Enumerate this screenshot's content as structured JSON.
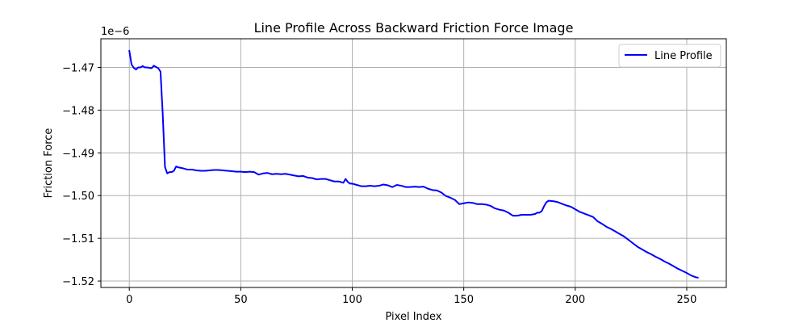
{
  "chart_data": {
    "type": "line",
    "title": "Line Profile Across Backward Friction Force Image",
    "xlabel": "Pixel Index",
    "ylabel": "Friction Force",
    "offset_text": "1e−6",
    "xlim": [
      -12.75,
      267.75
    ],
    "ylim": [
      -1.5215,
      -1.4633
    ],
    "x_ticks": [
      0,
      50,
      100,
      150,
      200,
      250
    ],
    "y_ticks": [
      -1.47,
      -1.48,
      -1.49,
      -1.5,
      -1.51,
      -1.52
    ],
    "y_tick_labels": [
      "−1.47",
      "−1.48",
      "−1.49",
      "−1.50",
      "−1.51",
      "−1.52"
    ],
    "grid": true,
    "legend": {
      "placement": "top-right"
    },
    "series": [
      {
        "name": "Line Profile",
        "color": "#0000ff",
        "points": [
          [
            0,
            -1.4661
          ],
          [
            1,
            -1.4693
          ],
          [
            2,
            -1.4701
          ],
          [
            3,
            -1.4705
          ],
          [
            4,
            -1.47
          ],
          [
            5,
            -1.47
          ],
          [
            6,
            -1.4697
          ],
          [
            7,
            -1.47
          ],
          [
            8,
            -1.47
          ],
          [
            9,
            -1.4701
          ],
          [
            10,
            -1.4702
          ],
          [
            11,
            -1.4696
          ],
          [
            12,
            -1.4699
          ],
          [
            13,
            -1.4702
          ],
          [
            14,
            -1.471
          ],
          [
            15,
            -1.481
          ],
          [
            16,
            -1.4933
          ],
          [
            17,
            -1.4948
          ],
          [
            18,
            -1.4945
          ],
          [
            19,
            -1.4945
          ],
          [
            20,
            -1.4942
          ],
          [
            21,
            -1.4932
          ],
          [
            22,
            -1.4934
          ],
          [
            24,
            -1.4936
          ],
          [
            26,
            -1.4939
          ],
          [
            28,
            -1.4939
          ],
          [
            30,
            -1.4941
          ],
          [
            32,
            -1.4942
          ],
          [
            34,
            -1.4942
          ],
          [
            36,
            -1.4941
          ],
          [
            38,
            -1.494
          ],
          [
            40,
            -1.494
          ],
          [
            42,
            -1.4941
          ],
          [
            44,
            -1.4942
          ],
          [
            46,
            -1.4943
          ],
          [
            48,
            -1.4944
          ],
          [
            50,
            -1.4944
          ],
          [
            52,
            -1.4945
          ],
          [
            54,
            -1.4944
          ],
          [
            56,
            -1.4945
          ],
          [
            58,
            -1.4951
          ],
          [
            60,
            -1.4948
          ],
          [
            62,
            -1.4947
          ],
          [
            64,
            -1.495
          ],
          [
            66,
            -1.4949
          ],
          [
            68,
            -1.495
          ],
          [
            70,
            -1.4949
          ],
          [
            72,
            -1.4951
          ],
          [
            74,
            -1.4953
          ],
          [
            76,
            -1.4955
          ],
          [
            78,
            -1.4954
          ],
          [
            80,
            -1.4958
          ],
          [
            82,
            -1.4959
          ],
          [
            84,
            -1.4962
          ],
          [
            86,
            -1.4961
          ],
          [
            88,
            -1.4961
          ],
          [
            90,
            -1.4964
          ],
          [
            92,
            -1.4967
          ],
          [
            94,
            -1.4967
          ],
          [
            96,
            -1.497
          ],
          [
            97,
            -1.4961
          ],
          [
            98,
            -1.4968
          ],
          [
            99,
            -1.4972
          ],
          [
            100,
            -1.4972
          ],
          [
            102,
            -1.4975
          ],
          [
            104,
            -1.4978
          ],
          [
            106,
            -1.4978
          ],
          [
            108,
            -1.4977
          ],
          [
            110,
            -1.4978
          ],
          [
            112,
            -1.4977
          ],
          [
            114,
            -1.4974
          ],
          [
            116,
            -1.4976
          ],
          [
            118,
            -1.498
          ],
          [
            120,
            -1.4975
          ],
          [
            122,
            -1.4977
          ],
          [
            124,
            -1.498
          ],
          [
            126,
            -1.498
          ],
          [
            128,
            -1.4979
          ],
          [
            130,
            -1.498
          ],
          [
            132,
            -1.4979
          ],
          [
            134,
            -1.4984
          ],
          [
            136,
            -1.4987
          ],
          [
            138,
            -1.4988
          ],
          [
            140,
            -1.4993
          ],
          [
            142,
            -1.5001
          ],
          [
            144,
            -1.5005
          ],
          [
            146,
            -1.501
          ],
          [
            148,
            -1.502
          ],
          [
            150,
            -1.5018
          ],
          [
            152,
            -1.5016
          ],
          [
            154,
            -1.5017
          ],
          [
            156,
            -1.502
          ],
          [
            158,
            -1.502
          ],
          [
            160,
            -1.5021
          ],
          [
            162,
            -1.5024
          ],
          [
            164,
            -1.503
          ],
          [
            166,
            -1.5033
          ],
          [
            168,
            -1.5035
          ],
          [
            170,
            -1.504
          ],
          [
            172,
            -1.5047
          ],
          [
            174,
            -1.5047
          ],
          [
            176,
            -1.5045
          ],
          [
            178,
            -1.5045
          ],
          [
            180,
            -1.5045
          ],
          [
            182,
            -1.5043
          ],
          [
            183,
            -1.504
          ],
          [
            184,
            -1.504
          ],
          [
            185,
            -1.5036
          ],
          [
            186,
            -1.5025
          ],
          [
            187,
            -1.5016
          ],
          [
            188,
            -1.5012
          ],
          [
            190,
            -1.5013
          ],
          [
            192,
            -1.5015
          ],
          [
            194,
            -1.5019
          ],
          [
            196,
            -1.5023
          ],
          [
            198,
            -1.5026
          ],
          [
            200,
            -1.5032
          ],
          [
            202,
            -1.5038
          ],
          [
            204,
            -1.5042
          ],
          [
            206,
            -1.5046
          ],
          [
            208,
            -1.505
          ],
          [
            210,
            -1.506
          ],
          [
            212,
            -1.5066
          ],
          [
            214,
            -1.5073
          ],
          [
            216,
            -1.5078
          ],
          [
            218,
            -1.5084
          ],
          [
            220,
            -1.509
          ],
          [
            222,
            -1.5096
          ],
          [
            224,
            -1.5104
          ],
          [
            226,
            -1.5112
          ],
          [
            228,
            -1.512
          ],
          [
            230,
            -1.5126
          ],
          [
            232,
            -1.5132
          ],
          [
            234,
            -1.5137
          ],
          [
            236,
            -1.5143
          ],
          [
            238,
            -1.5148
          ],
          [
            240,
            -1.5154
          ],
          [
            242,
            -1.5159
          ],
          [
            244,
            -1.5165
          ],
          [
            246,
            -1.5171
          ],
          [
            248,
            -1.5176
          ],
          [
            250,
            -1.5181
          ],
          [
            252,
            -1.5187
          ],
          [
            254,
            -1.5191
          ],
          [
            255,
            -1.5192
          ]
        ]
      }
    ]
  }
}
